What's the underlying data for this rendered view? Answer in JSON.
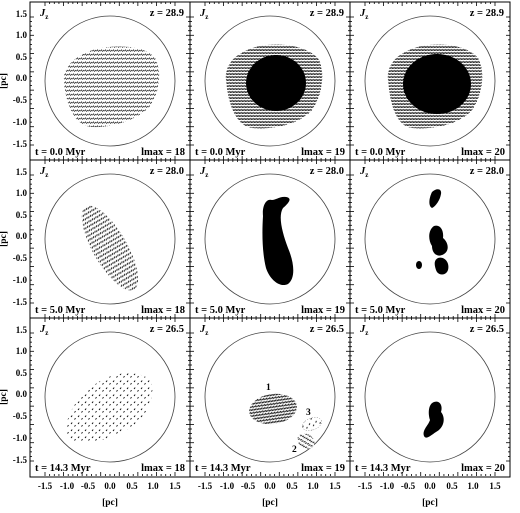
{
  "figure": {
    "component_label": "J",
    "component_subscript": "z",
    "x_axis_label": "[pc]",
    "y_axis_label": "[pc]",
    "x_ticks": [
      "-1.5",
      "-1.0",
      "-0.5",
      "0.0",
      "0.5",
      "1.0",
      "1.5"
    ],
    "y_ticks": [
      "1.5",
      "1.0",
      "0.5",
      "0.0",
      "-0.5",
      "-1.0",
      "-1.5"
    ],
    "panels": [
      {
        "redshift": "z = 28.9",
        "time": "t = 0.0 Myr",
        "lmax": "lmax = 18"
      },
      {
        "redshift": "z = 28.9",
        "time": "t = 0.0 Myr",
        "lmax": "lmax = 19"
      },
      {
        "redshift": "z = 28.9",
        "time": "t = 0.0 Myr",
        "lmax": "lmax = 20"
      },
      {
        "redshift": "z = 28.0",
        "time": "t = 5.0 Myr",
        "lmax": "lmax = 18"
      },
      {
        "redshift": "z = 28.0",
        "time": "t = 5.0 Myr",
        "lmax": "lmax = 19"
      },
      {
        "redshift": "z = 28.0",
        "time": "t = 5.0 Myr",
        "lmax": "lmax = 20"
      },
      {
        "redshift": "z = 26.5",
        "time": "t = 14.3 Myr",
        "lmax": "lmax = 18"
      },
      {
        "redshift": "z = 26.5",
        "time": "t = 14.3 Myr",
        "lmax": "lmax = 19"
      },
      {
        "redshift": "z = 26.5",
        "time": "t = 14.3 Myr",
        "lmax": "lmax = 20"
      }
    ],
    "clump_labels": [
      "1",
      "2",
      "3"
    ]
  }
}
